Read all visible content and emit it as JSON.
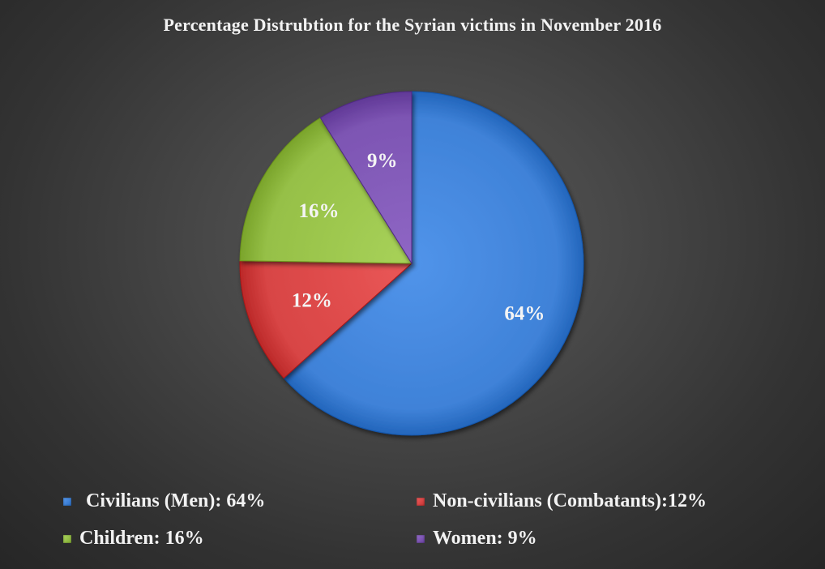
{
  "chart_data": {
    "type": "pie",
    "title": "Percentage Distrubtion for the Syrian victims in November 2016",
    "slices": [
      {
        "name": "Civilians (Men)",
        "value": 64,
        "label": "64%",
        "legend": "Civilians (Men): 64%",
        "color": "#3f82d8"
      },
      {
        "name": "Non-civilians (Combatants)",
        "value": 12,
        "label": "12%",
        "legend": "Non-civilians (Combatants):12%",
        "color": "#d84545"
      },
      {
        "name": "Children",
        "value": 16,
        "label": "16%",
        "legend": "Children: 16%",
        "color": "#96c047"
      },
      {
        "name": "Women",
        "value": 9,
        "label": "9%",
        "legend": "Women: 9%",
        "color": "#7d55b3"
      }
    ],
    "legend_position": "bottom"
  }
}
